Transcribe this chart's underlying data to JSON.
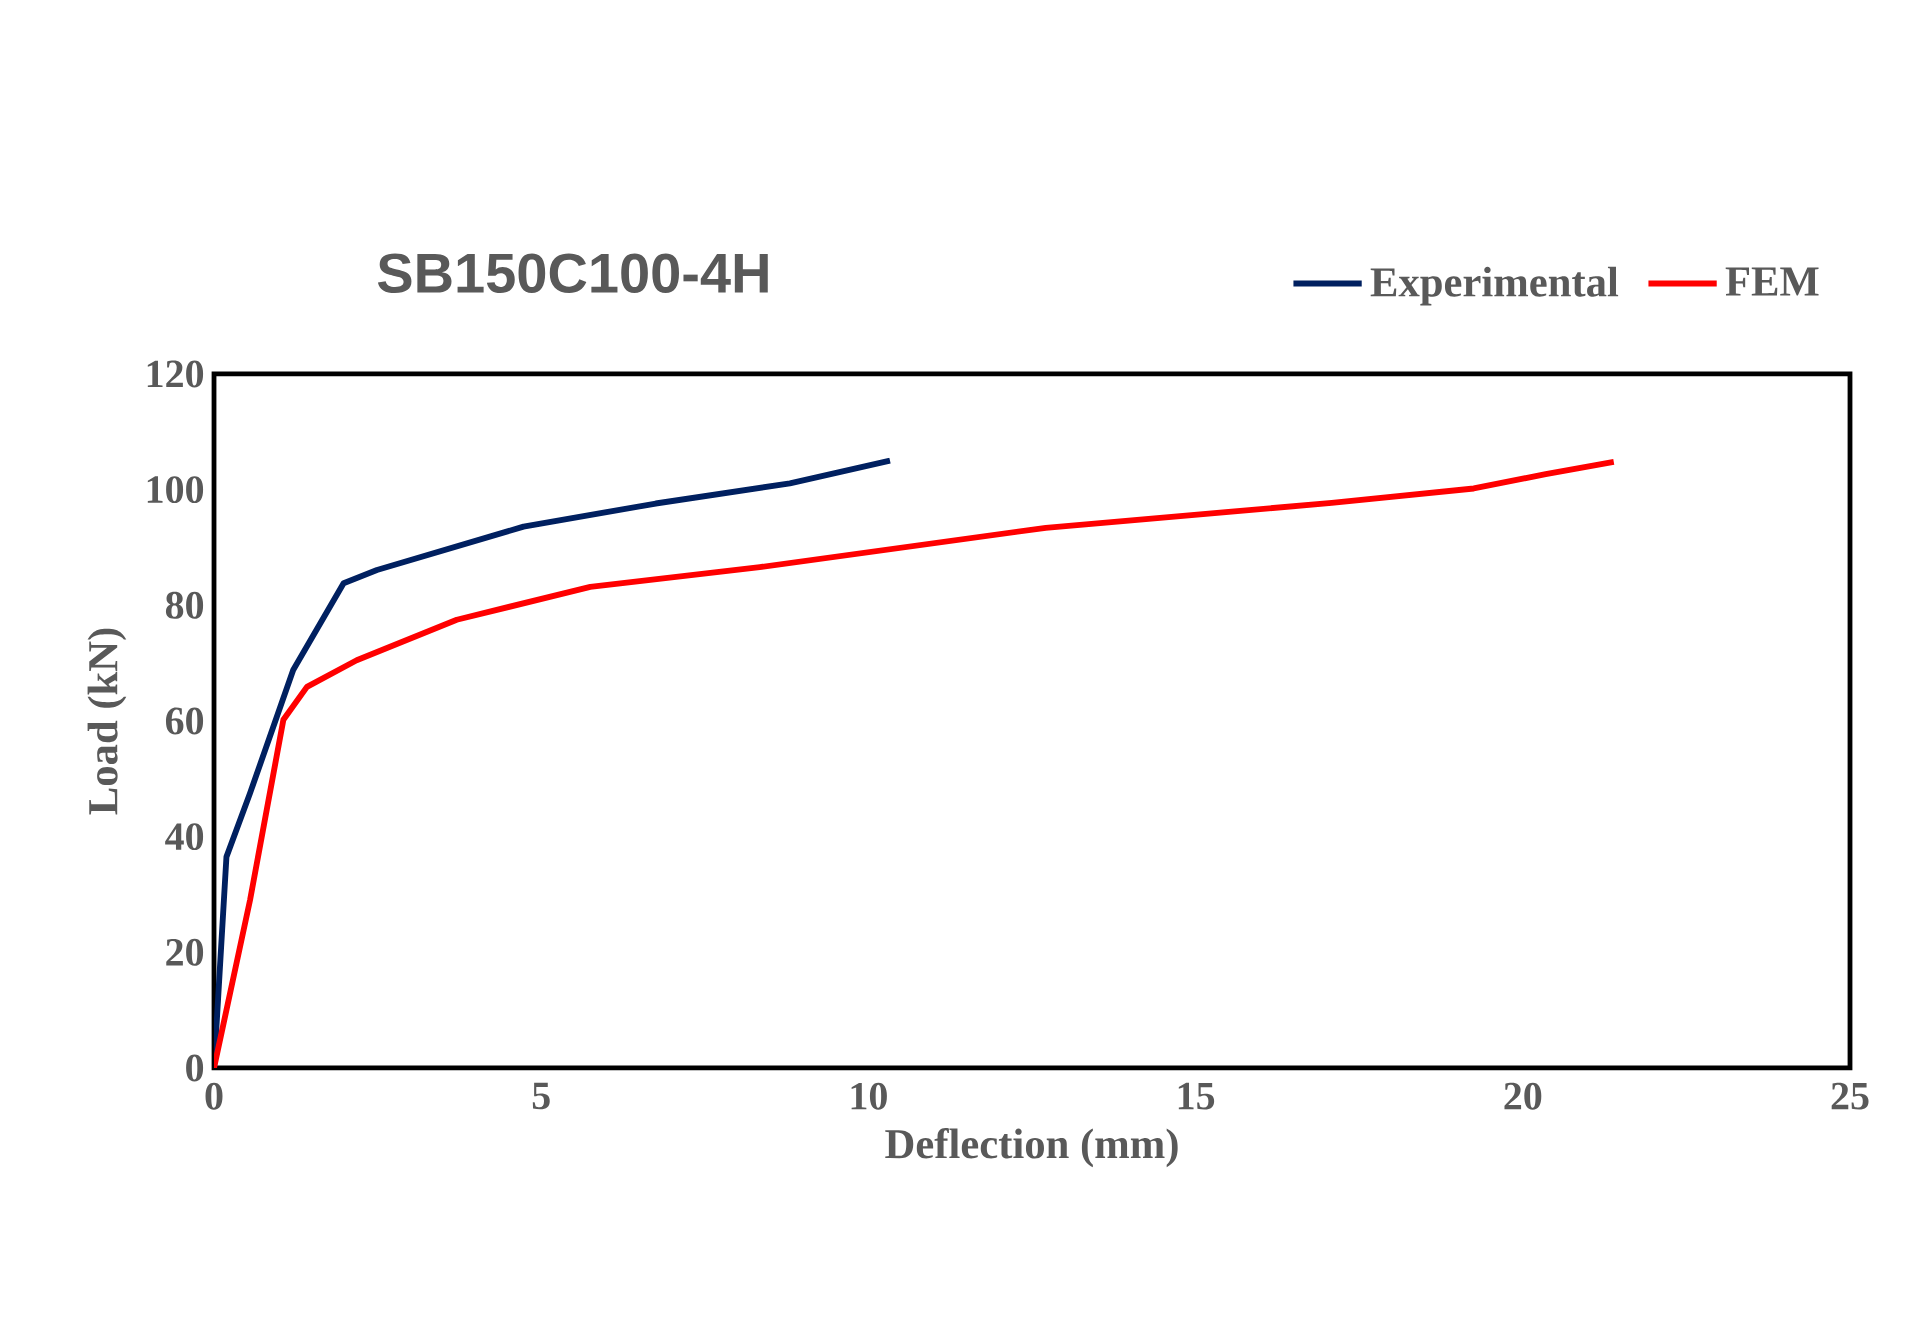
{
  "chart_data": {
    "type": "line",
    "title": "SB150C100-4H",
    "xlabel": "Deflection (mm)",
    "ylabel": "Load (kN)",
    "xlim": [
      0,
      25
    ],
    "xticks": [
      0,
      5,
      10,
      15,
      20,
      25
    ],
    "ylim": [
      0,
      120
    ],
    "yticks": [
      0,
      20,
      40,
      60,
      80,
      100,
      120
    ],
    "grid": false,
    "legend": "top right",
    "marker": "none",
    "line_style": "solid",
    "series": [
      {
        "name": "Experimental",
        "color": "#002060",
        "x": [
          0,
          0.19,
          0.55,
          1.21,
          1.98,
          2.49,
          4.73,
          6.75,
          8.8,
          10.33
        ],
        "values": [
          0,
          36.5,
          47.5,
          68.8,
          83.8,
          86.1,
          93.6,
          97.6,
          101.1,
          105
        ]
      },
      {
        "name": "FEM",
        "color": "#ff0000",
        "x": [
          0,
          0.55,
          1.06,
          1.42,
          2.18,
          3.71,
          5.75,
          8.34,
          12.71,
          17.08,
          19.25,
          20.35,
          21.39
        ],
        "values": [
          0,
          29,
          60.2,
          65.9,
          70.5,
          77.5,
          83.2,
          86.6,
          93.4,
          97.7,
          100.2,
          102.7,
          104.8
        ]
      }
    ]
  }
}
